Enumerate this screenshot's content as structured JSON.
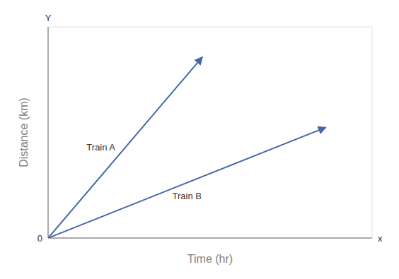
{
  "chart_data": {
    "type": "line",
    "xlabel": "Time (hr)",
    "ylabel": "Distance (km)",
    "series": [
      {
        "name": "Train A",
        "color": "#4466aa",
        "marker": "arrow",
        "x": [
          0,
          5
        ],
        "values": [
          0,
          9
        ]
      },
      {
        "name": "Train B",
        "color": "#4466aa",
        "marker": "arrow",
        "x": [
          0,
          9
        ],
        "values": [
          0,
          5.5
        ]
      }
    ],
    "xlim": [
      0,
      10.5
    ],
    "ylim": [
      0,
      10.5
    ],
    "xticks": [
      1,
      2,
      3,
      4,
      5,
      6,
      7,
      8,
      9,
      10
    ],
    "yticks": [
      1,
      2,
      3,
      4,
      5,
      6,
      7,
      8,
      9,
      10
    ],
    "grid": true,
    "tick_labels": false,
    "annotations": [
      {
        "text": "0",
        "x": 0,
        "y": 0
      },
      {
        "text": "Y",
        "x": 0,
        "y": 10.5
      },
      {
        "text": "x",
        "x": 10.5,
        "y": 0
      }
    ]
  }
}
